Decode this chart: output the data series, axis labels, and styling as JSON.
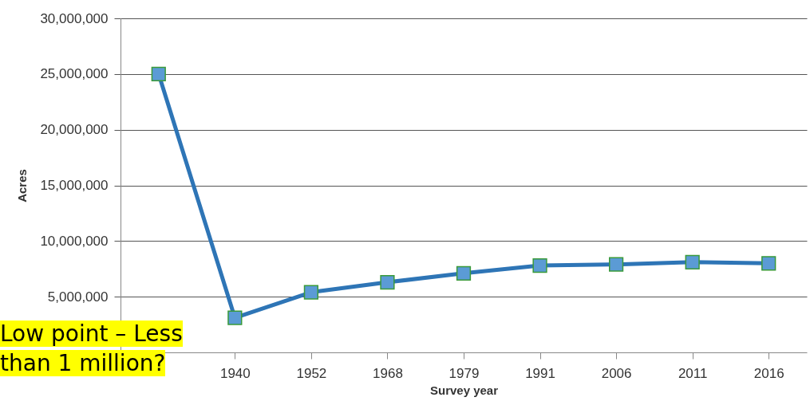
{
  "chart_data": {
    "type": "line",
    "xlabel": "Survey year",
    "ylabel": "Acres",
    "categories": [
      null,
      "1940",
      "1952",
      "1968",
      "1979",
      "1991",
      "2006",
      "2011",
      "2016"
    ],
    "series": [
      {
        "color": "#2e75b6",
        "values": [
          25000000,
          3100000,
          5400000,
          6300000,
          7100000,
          7800000,
          7900000,
          8100000,
          8000000
        ]
      }
    ],
    "ylim": [
      0,
      30000000
    ],
    "yticks": [
      {
        "value": 5000000,
        "label": "5,000,000"
      },
      {
        "value": 10000000,
        "label": "10,000,000"
      },
      {
        "value": 15000000,
        "label": "15,000,000"
      },
      {
        "value": 20000000,
        "label": "20,000,000"
      },
      {
        "value": 25000000,
        "label": "25,000,000"
      },
      {
        "value": 30000000,
        "label": "30,000,000"
      }
    ],
    "grid": "y",
    "marker": "square",
    "legend": false,
    "annotations": [
      "Low point – Less than 1 million?"
    ]
  }
}
